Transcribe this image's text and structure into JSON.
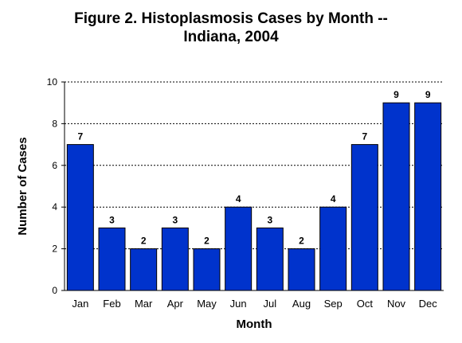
{
  "chart_data": {
    "type": "bar",
    "title_line1": "Figure 2. Histoplasmosis Cases by Month --",
    "title_line2": "Indiana, 2004",
    "xlabel": "Month",
    "ylabel": "Number of Cases",
    "categories": [
      "Jan",
      "Feb",
      "Mar",
      "Apr",
      "May",
      "Jun",
      "Jul",
      "Aug",
      "Sep",
      "Oct",
      "Nov",
      "Dec"
    ],
    "values": [
      7,
      3,
      2,
      3,
      2,
      4,
      3,
      2,
      4,
      7,
      9,
      9
    ],
    "ylim": [
      0,
      10
    ],
    "yticks": [
      0,
      2,
      4,
      6,
      8,
      10
    ],
    "grid": "dotted horizontal",
    "bar_color": "#0033cc",
    "data_labels": true
  }
}
